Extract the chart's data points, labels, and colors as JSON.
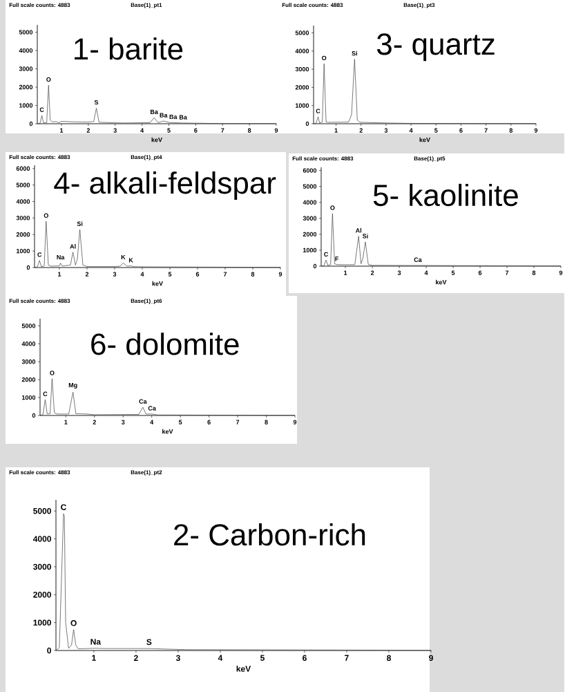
{
  "chart_data": [
    {
      "type": "line",
      "title": "Full scale counts: 4883",
      "subtitle": "Base(1)_pt1",
      "xlabel": "keV",
      "color": "#404040",
      "xlim": [
        0.1,
        9
      ],
      "xticks": [
        1,
        2,
        3,
        4,
        5,
        6,
        7,
        8,
        9
      ],
      "ylim": [
        0,
        5400
      ],
      "yticks": [
        0,
        1000,
        2000,
        3000,
        4000,
        5000
      ],
      "x": [
        0.1,
        0.2,
        0.27,
        0.33,
        0.45,
        0.52,
        0.58,
        0.65,
        0.8,
        0.9,
        1.0,
        1.5,
        2.0,
        2.2,
        2.3,
        2.4,
        3.0,
        3.3,
        4.3,
        4.45,
        4.6,
        4.8,
        5.0,
        5.5,
        6.0,
        7.0,
        9.0
      ],
      "values": [
        0,
        20,
        450,
        50,
        50,
        2100,
        200,
        100,
        120,
        60,
        130,
        100,
        90,
        120,
        850,
        80,
        50,
        40,
        60,
        330,
        60,
        150,
        70,
        40,
        30,
        10,
        10
      ],
      "annotations": [
        "1- barite",
        {
          "text": "C",
          "x": 0.27,
          "y": 450
        },
        {
          "text": "O",
          "x": 0.52,
          "y": 2100
        },
        {
          "text": "S",
          "x": 2.3,
          "y": 850
        },
        {
          "text": "Ba",
          "x": 4.45,
          "y": 330
        },
        {
          "text": "Ba",
          "x": 4.8,
          "y": 150
        },
        {
          "text": "Ba",
          "x": 5.16,
          "y": 60
        },
        {
          "text": "Ba",
          "x": 5.53,
          "y": 40
        }
      ]
    },
    {
      "type": "line",
      "title": "Full scale counts: 4883",
      "subtitle": "Base(1)_pt3",
      "xlabel": "keV",
      "color": "#404040",
      "xlim": [
        0.1,
        9
      ],
      "xticks": [
        1,
        2,
        3,
        4,
        5,
        6,
        7,
        8,
        9
      ],
      "ylim": [
        0,
        5400
      ],
      "yticks": [
        0,
        1000,
        2000,
        3000,
        4000,
        5000
      ],
      "x": [
        0.1,
        0.2,
        0.28,
        0.34,
        0.45,
        0.52,
        0.6,
        0.7,
        1.5,
        1.62,
        1.74,
        1.85,
        1.95,
        3.0,
        4.0,
        9.0
      ],
      "values": [
        0,
        30,
        380,
        40,
        100,
        3300,
        100,
        80,
        90,
        500,
        3550,
        200,
        80,
        40,
        20,
        10
      ],
      "annotations": [
        "3- quartz",
        {
          "text": "C",
          "x": 0.28,
          "y": 380
        },
        {
          "text": "O",
          "x": 0.52,
          "y": 3300
        },
        {
          "text": "Si",
          "x": 1.74,
          "y": 3550
        }
      ]
    },
    {
      "type": "line",
      "title": "Full scale counts: 4883",
      "subtitle": "Base(1)_pt4",
      "xlabel": "keV",
      "color": "#404040",
      "xlim": [
        0.1,
        9
      ],
      "xticks": [
        1,
        2,
        3,
        4,
        5,
        6,
        7,
        8,
        9
      ],
      "ylim": [
        0,
        6200
      ],
      "yticks": [
        0,
        1000,
        2000,
        3000,
        4000,
        5000,
        6000
      ],
      "x": [
        0.1,
        0.2,
        0.28,
        0.35,
        0.45,
        0.52,
        0.6,
        0.7,
        1.0,
        1.04,
        1.1,
        1.4,
        1.49,
        1.58,
        1.65,
        1.74,
        1.85,
        2.0,
        3.0,
        3.2,
        3.31,
        3.45,
        3.59,
        3.7,
        4.2,
        9.0
      ],
      "values": [
        0,
        30,
        430,
        40,
        100,
        2800,
        150,
        80,
        100,
        270,
        90,
        150,
        930,
        150,
        500,
        2300,
        150,
        60,
        60,
        80,
        280,
        80,
        100,
        50,
        40,
        10
      ],
      "annotations": [
        "4- alkali-feldspar",
        {
          "text": "C",
          "x": 0.28,
          "y": 430
        },
        {
          "text": "O",
          "x": 0.52,
          "y": 2800
        },
        {
          "text": "Na",
          "x": 1.04,
          "y": 270
        },
        {
          "text": "Al",
          "x": 1.49,
          "y": 930
        },
        {
          "text": "Si",
          "x": 1.74,
          "y": 2300
        },
        {
          "text": "K",
          "x": 3.31,
          "y": 280
        },
        {
          "text": "K",
          "x": 3.59,
          "y": 100
        }
      ]
    },
    {
      "type": "line",
      "title": "Full scale counts: 4883",
      "subtitle": "Base(1)_pt5",
      "xlabel": "keV",
      "color": "#404040",
      "xlim": [
        0.1,
        9
      ],
      "xticks": [
        1,
        2,
        3,
        4,
        5,
        6,
        7,
        8,
        9
      ],
      "ylim": [
        0,
        6200
      ],
      "yticks": [
        0,
        1000,
        2000,
        3000,
        4000,
        5000,
        6000
      ],
      "x": [
        0.1,
        0.2,
        0.28,
        0.35,
        0.45,
        0.52,
        0.6,
        0.68,
        1.0,
        1.35,
        1.49,
        1.58,
        1.65,
        1.74,
        1.85,
        2.0,
        3.69,
        4.0,
        9.0
      ],
      "values": [
        0,
        20,
        380,
        40,
        100,
        3300,
        150,
        100,
        90,
        100,
        1880,
        150,
        500,
        1520,
        100,
        50,
        40,
        40,
        10
      ],
      "annotations": [
        "5- kaolinite",
        {
          "text": "C",
          "x": 0.28,
          "y": 380
        },
        {
          "text": "O",
          "x": 0.52,
          "y": 3300
        },
        {
          "text": "F",
          "x": 0.68,
          "y": 100
        },
        {
          "text": "Al",
          "x": 1.49,
          "y": 1880
        },
        {
          "text": "Si",
          "x": 1.74,
          "y": 1520
        },
        {
          "text": "Ca",
          "x": 3.69,
          "y": 40
        }
      ]
    },
    {
      "type": "line",
      "title": "Full scale counts: 4883",
      "subtitle": "Base(1)_pt6",
      "xlabel": "keV",
      "color": "#404040",
      "xlim": [
        0.1,
        9
      ],
      "xticks": [
        1,
        2,
        3,
        4,
        5,
        6,
        7,
        8,
        9
      ],
      "ylim": [
        0,
        5400
      ],
      "yticks": [
        0,
        1000,
        2000,
        3000,
        4000,
        5000
      ],
      "x": [
        0.1,
        0.2,
        0.28,
        0.35,
        0.45,
        0.52,
        0.6,
        0.7,
        1.1,
        1.25,
        1.35,
        1.74,
        2.0,
        3.55,
        3.69,
        3.8,
        4.01,
        4.2,
        9.0
      ],
      "values": [
        0,
        50,
        880,
        80,
        100,
        2050,
        150,
        80,
        80,
        1300,
        100,
        80,
        40,
        60,
        460,
        80,
        80,
        30,
        10
      ],
      "annotations": [
        "6- dolomite",
        {
          "text": "C",
          "x": 0.28,
          "y": 880
        },
        {
          "text": "O",
          "x": 0.52,
          "y": 2050
        },
        {
          "text": "Mg",
          "x": 1.25,
          "y": 1300
        },
        {
          "text": "Ca",
          "x": 3.69,
          "y": 460
        },
        {
          "text": "Ca",
          "x": 4.01,
          "y": 80
        }
      ]
    },
    {
      "type": "line",
      "title": "Full scale counts: 4883",
      "subtitle": "Base(1)_pt2",
      "xlabel": "keV",
      "color": "#404040",
      "xlim": [
        0.1,
        9
      ],
      "xticks": [
        1,
        2,
        3,
        4,
        5,
        6,
        7,
        8,
        9
      ],
      "ylim": [
        0,
        5400
      ],
      "yticks": [
        0,
        1000,
        2000,
        3000,
        4000,
        5000
      ],
      "x": [
        0.1,
        0.18,
        0.28,
        0.3,
        0.33,
        0.4,
        0.47,
        0.52,
        0.57,
        0.63,
        1.04,
        1.26,
        2.31,
        3.2,
        9.0
      ],
      "values": [
        0,
        100,
        4900,
        4800,
        1000,
        80,
        200,
        750,
        200,
        60,
        80,
        70,
        70,
        30,
        10
      ],
      "annotations": [
        "2- Carbon-rich",
        {
          "text": "C",
          "x": 0.28,
          "y": 4900
        },
        {
          "text": "O",
          "x": 0.52,
          "y": 750
        },
        {
          "text": "Na",
          "x": 1.04,
          "y": 80
        },
        {
          "text": "S",
          "x": 2.31,
          "y": 70
        }
      ]
    }
  ]
}
